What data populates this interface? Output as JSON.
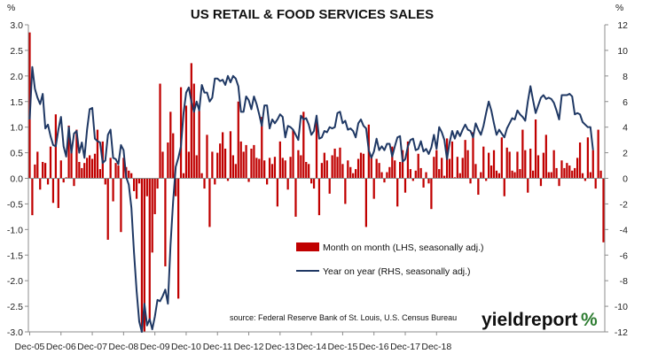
{
  "chart_data": {
    "type": "bar+line",
    "title": "US RETAIL & FOOD SERVICES SALES",
    "left_unit": "%",
    "right_unit": "%",
    "left_axis": {
      "min": -3.0,
      "max": 3.0,
      "step": 0.5,
      "ticks": [
        "3.0",
        "2.5",
        "2.0",
        "1.5",
        "1.0",
        "0.5",
        "0.0",
        "-0.5",
        "-1.0",
        "-1.5",
        "-2.0",
        "-2.5",
        "-3.0"
      ]
    },
    "right_axis": {
      "min": -12,
      "max": 12,
      "step": 2,
      "ticks": [
        "12",
        "10",
        "8",
        "6",
        "4",
        "2",
        "0",
        "-2",
        "-4",
        "-6",
        "-8",
        "-10",
        "-12"
      ]
    },
    "x_ticks": [
      "Dec-05",
      "Dec-06",
      "Dec-07",
      "Dec-08",
      "Dec-09",
      "Dec-10",
      "Dec-11",
      "Dec-12",
      "Dec-13",
      "Dec-14",
      "Dec-15",
      "Dec-16",
      "Dec-17",
      "Dec-18"
    ],
    "start_month": "Dec-05",
    "series": [
      {
        "name": "Month on month (LHS, seasonally adj.)",
        "kind": "bar",
        "axis": "left",
        "color": "#c00000",
        "values": [
          2.85,
          -0.72,
          0.27,
          0.52,
          -0.22,
          0.32,
          0.3,
          -0.12,
          0.62,
          -0.48,
          1.25,
          -0.58,
          0.35,
          -0.08,
          0.02,
          1.03,
          0.52,
          -0.15,
          0.95,
          0.32,
          0.2,
          0.3,
          0.4,
          0.45,
          0.38,
          0.48,
          0.95,
          0.18,
          0.72,
          -0.12,
          -1.2,
          0.4,
          -0.45,
          0.3,
          0.25,
          -1.05,
          0.4,
          0.22,
          0.15,
          0.1,
          -0.25,
          -0.4,
          -0.1,
          -3.0,
          -3.0,
          -0.35,
          -2.8,
          -1.45,
          -0.7,
          -0.2,
          1.85,
          0.52,
          -1.72,
          0.7,
          1.3,
          0.88,
          -0.35,
          -2.35,
          1.78,
          0.1,
          1.42,
          0.52,
          2.25,
          1.85,
          0.45,
          1.32,
          0.1,
          -0.2,
          0.85,
          -0.95,
          0.52,
          -0.12,
          0.5,
          0.68,
          0.9,
          0.58,
          -0.05,
          0.92,
          0.45,
          0.28,
          1.5,
          0.72,
          0.52,
          0.65,
          -0.07,
          0.58,
          0.65,
          0.4,
          0.38,
          1.2,
          0.35,
          -0.12,
          0.4,
          0.28,
          0.42,
          -0.55,
          0.72,
          0.4,
          0.35,
          -0.22,
          0.42,
          0.95,
          -0.75,
          0.55,
          0.45,
          1.3,
          0.32,
          0.28,
          -0.1,
          -0.2,
          1.1,
          -0.72,
          0.3,
          0.5,
          0.35,
          -0.3,
          0.45,
          0.58,
          0.42,
          0.6,
          0.28,
          -0.5,
          0.35,
          0.22,
          0.1,
          0.18,
          0.38,
          0.5,
          0.48,
          -0.95,
          1.05,
          0.42,
          -0.4,
          0.38,
          0.3,
          0.12,
          -0.08,
          0.12,
          0.22,
          0.62,
          0.35,
          -0.55,
          0.32,
          0.55,
          -0.28,
          0.72,
          0.18,
          -0.05,
          0.15,
          0.48,
          0.2,
          -0.18,
          0.12,
          -0.1,
          -0.6,
          0.42,
          0.55,
          0.18,
          0.4,
          0.05,
          0.78,
          0.38,
          0.72,
          0.02,
          0.42,
          0.1,
          0.4,
          0.75,
          0.55,
          -0.1,
          0.9,
          0.28,
          -0.32,
          0.12,
          0.62,
          -0.05,
          0.5,
          0.25,
          0.55,
          0.15,
          0.1,
          0.8,
          -0.35,
          0.6,
          0.52,
          0.15,
          0.12,
          0.52,
          0.18,
          0.95,
          0.55,
          -0.28,
          0.58,
          0.15,
          1.15,
          0.45,
          -0.15,
          0.5,
          0.85,
          0.12,
          0.12,
          0.55,
          0.2,
          -0.15,
          0.35,
          0.2,
          0.3,
          0.25,
          0.15,
          0.2,
          0.4,
          0.7,
          0.1,
          -0.05,
          0.8,
          0.12,
          0.55,
          -0.2,
          0.95,
          0.15,
          -1.25
        ]
      },
      {
        "name": "Year on year (RHS, seasonally adj.)",
        "kind": "line",
        "axis": "right",
        "color": "#1f3864",
        "values": [
          4.6,
          8.7,
          7.0,
          6.3,
          5.8,
          6.6,
          3.9,
          4.2,
          3.3,
          2.6,
          2.5,
          3.8,
          4.8,
          2.5,
          1.7,
          4.0,
          2.0,
          3.5,
          3.7,
          2.0,
          2.8,
          1.6,
          3.8,
          5.4,
          5.5,
          3.1,
          2.9,
          2.8,
          1.2,
          1.4,
          3.4,
          3.8,
          1.6,
          1.5,
          1.1,
          2.6,
          2.2,
          0.1,
          -0.5,
          -2.3,
          -5.8,
          -8.8,
          -11.2,
          -12.0,
          -9.8,
          -11.5,
          -11.0,
          -11.8,
          -10.8,
          -9.5,
          -9.6,
          -9.2,
          -8.7,
          -9.8,
          -5.2,
          -1.8,
          0.9,
          1.6,
          2.5,
          5.1,
          6.7,
          7.1,
          6.0,
          5.2,
          6.0,
          5.3,
          7.3,
          6.7,
          6.7,
          6.0,
          6.3,
          7.8,
          7.8,
          7.6,
          7.7,
          7.3,
          8.0,
          7.5,
          8.0,
          7.8,
          7.2,
          5.2,
          5.2,
          6.4,
          6.1,
          5.4,
          6.4,
          5.8,
          5.0,
          4.1,
          5.7,
          5.7,
          3.9,
          4.6,
          4.3,
          4.6,
          5.0,
          4.8,
          3.2,
          4.1,
          4.0,
          3.8,
          3.4,
          3.0,
          4.9,
          4.6,
          4.7,
          4.2,
          3.4,
          3.7,
          4.9,
          3.1,
          3.2,
          3.7,
          3.6,
          4.0,
          3.9,
          4.0,
          5.1,
          5.2,
          4.3,
          4.5,
          3.8,
          3.9,
          3.7,
          3.2,
          4.3,
          4.6,
          4.1,
          3.9,
          2.2,
          1.6,
          2.1,
          3.1,
          2.2,
          2.5,
          2.2,
          2.7,
          2.7,
          1.7,
          2.5,
          3.2,
          3.3,
          1.3,
          1.5,
          2.5,
          3.0,
          3.1,
          2.2,
          2.3,
          2.9,
          2.1,
          2.3,
          1.9,
          2.4,
          3.4,
          2.3,
          4.0,
          3.6,
          3.0,
          1.5,
          2.8,
          3.7,
          3.1,
          3.7,
          3.3,
          3.8,
          4.2,
          3.8,
          3.7,
          3.2,
          4.3,
          3.8,
          3.4,
          4.1,
          5.1,
          6.0,
          5.3,
          4.3,
          3.4,
          3.8,
          3.5,
          3.2,
          3.9,
          4.3,
          4.7,
          4.6,
          5.3,
          5.0,
          4.8,
          4.5,
          6.0,
          7.2,
          6.1,
          5.1,
          5.7,
          6.3,
          6.5,
          6.2,
          6.3,
          6.2,
          5.9,
          5.3,
          4.6,
          6.5,
          6.5,
          6.5,
          6.6,
          6.4,
          5.0,
          5.1,
          5.0,
          4.4,
          4.2,
          4.0,
          4.0,
          2.2
        ]
      }
    ],
    "legend_position": "bottom-center",
    "annotation": "source: Federal Reserve Bank of St. Louis, U.S. Census Bureau",
    "grid": false
  },
  "brand": {
    "text_main": "yieldreport",
    "text_mark": "%"
  }
}
